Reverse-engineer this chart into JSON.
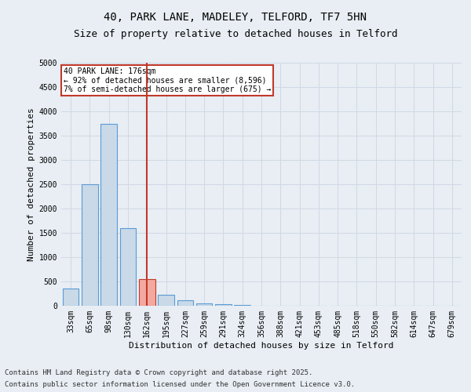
{
  "title_line1": "40, PARK LANE, MADELEY, TELFORD, TF7 5HN",
  "title_line2": "Size of property relative to detached houses in Telford",
  "xlabel": "Distribution of detached houses by size in Telford",
  "ylabel": "Number of detached properties",
  "categories": [
    "33sqm",
    "65sqm",
    "98sqm",
    "130sqm",
    "162sqm",
    "195sqm",
    "227sqm",
    "259sqm",
    "291sqm",
    "324sqm",
    "356sqm",
    "388sqm",
    "421sqm",
    "453sqm",
    "485sqm",
    "518sqm",
    "550sqm",
    "582sqm",
    "614sqm",
    "647sqm",
    "679sqm"
  ],
  "values": [
    350,
    2500,
    3750,
    1600,
    550,
    230,
    110,
    55,
    30,
    15,
    5,
    2,
    1,
    0,
    0,
    0,
    0,
    0,
    0,
    0,
    0
  ],
  "highlight_index": 4,
  "bar_color": "#c9d9e8",
  "bar_edge_color": "#5b9bd5",
  "highlight_bar_color": "#f4a9a0",
  "highlight_bar_edge_color": "#c0392b",
  "vline_color": "#c0392b",
  "ylim": [
    0,
    5000
  ],
  "yticks": [
    0,
    500,
    1000,
    1500,
    2000,
    2500,
    3000,
    3500,
    4000,
    4500,
    5000
  ],
  "annotation_text": "40 PARK LANE: 176sqm\n← 92% of detached houses are smaller (8,596)\n7% of semi-detached houses are larger (675) →",
  "annotation_box_color": "#ffffff",
  "annotation_box_edge_color": "#c0392b",
  "grid_color": "#d0d8e4",
  "background_color": "#e8eef4",
  "footer_line1": "Contains HM Land Registry data © Crown copyright and database right 2025.",
  "footer_line2": "Contains public sector information licensed under the Open Government Licence v3.0.",
  "title_fontsize": 10,
  "subtitle_fontsize": 9,
  "footer_fontsize": 6.5,
  "axis_label_fontsize": 8,
  "tick_fontsize": 7,
  "annotation_fontsize": 7
}
